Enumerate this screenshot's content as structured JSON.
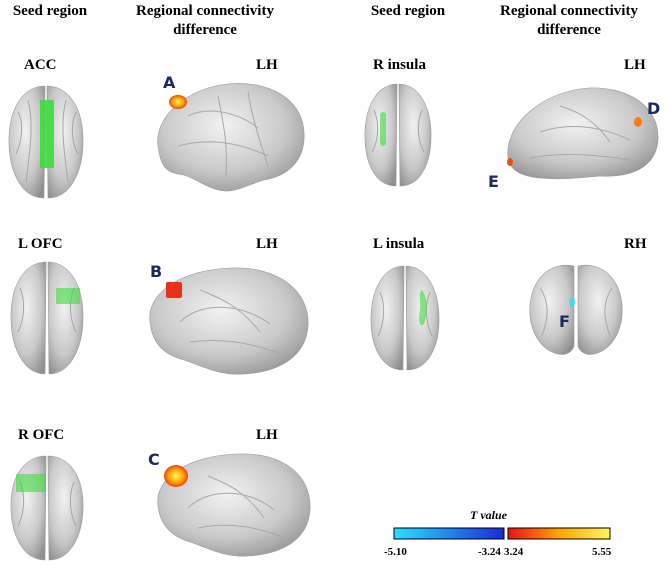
{
  "headers": {
    "seed_region_left": "Seed region",
    "connectivity_left_line1": "Regional connectivity",
    "connectivity_left_line2": "difference",
    "seed_region_right": "Seed region",
    "connectivity_right_line1": "Regional connectivity",
    "connectivity_right_line2": "difference"
  },
  "seeds": {
    "acc": "ACC",
    "l_ofc": "L OFC",
    "r_ofc": "R OFC",
    "r_insula": "R insula",
    "l_insula": "L insula"
  },
  "hemispheres": {
    "row1_left": "LH",
    "row2_left": "LH",
    "row3_left": "LH",
    "row1_right": "LH",
    "row2_right": "RH"
  },
  "markers": {
    "a": "A",
    "b": "B",
    "c": "C",
    "d": "D",
    "e": "E",
    "f": "F"
  },
  "colorbar": {
    "title": "T value",
    "neg_min": "-5.10",
    "neg_max": "-3.24",
    "pos_min": "3.24",
    "pos_max": "5.55",
    "neg_colors": [
      "#29e0ff",
      "#1b2bd6"
    ],
    "pos_colors": [
      "#e8101a",
      "#ffa500",
      "#fff566"
    ]
  },
  "colors": {
    "seed_green": "#3ddc3d",
    "brain_gray": "#bdbdbd",
    "marker_navy": "#1a2a5e"
  }
}
